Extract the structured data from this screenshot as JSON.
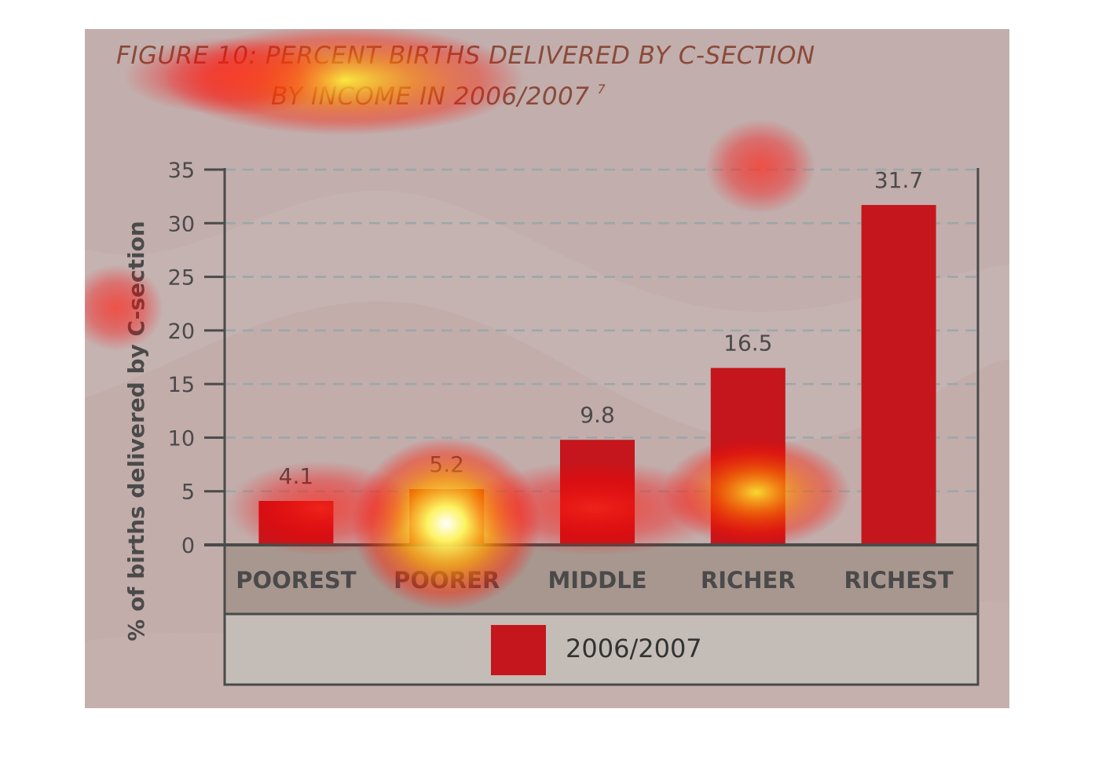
{
  "colors": {
    "background": "#c2aeac",
    "bar": "#c4161c",
    "axis": "#4a4a4a",
    "category_band": "#a8978f",
    "legend_band": "#c4bcb6",
    "title": "#8a4a3a"
  },
  "heatmap_overlay": true,
  "chart_data": {
    "type": "bar",
    "title_line1": "FIGURE 10: PERCENT BIRTHS DELIVERED BY C-SECTION",
    "title_line2": "BY INCOME IN 2006/2007",
    "title_superscript": "7",
    "ylabel": "% of births delivered by C-section",
    "xlabel": "",
    "ylim": [
      0,
      35
    ],
    "yticks": [
      0,
      5,
      10,
      15,
      20,
      25,
      30,
      35
    ],
    "grid": true,
    "categories": [
      "POOREST",
      "POORER",
      "MIDDLE",
      "RICHER",
      "RICHEST"
    ],
    "series": [
      {
        "name": "2006/2007",
        "values": [
          4.1,
          5.2,
          9.8,
          16.5,
          31.7
        ]
      }
    ],
    "value_labels": [
      "4.1",
      "5.2",
      "9.8",
      "16.5",
      "31.7"
    ],
    "legend_position": "bottom"
  }
}
